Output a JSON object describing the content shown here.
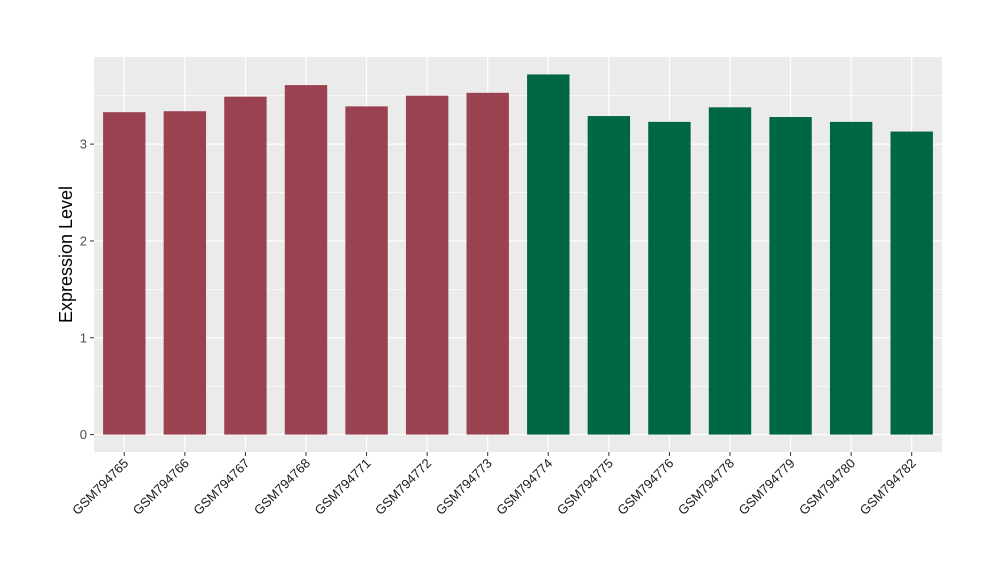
{
  "chart_data": {
    "type": "bar",
    "title": "",
    "xlabel": "",
    "ylabel": "Expression Level",
    "ylim": [
      -0.18,
      3.9
    ],
    "yticks": [
      0,
      1,
      2,
      3
    ],
    "grid": true,
    "legend": "none",
    "categories": [
      "GSM794765",
      "GSM794766",
      "GSM794767",
      "GSM794768",
      "GSM794771",
      "GSM794772",
      "GSM794773",
      "GSM794774",
      "GSM794775",
      "GSM794776",
      "GSM794778",
      "GSM794779",
      "GSM794780",
      "GSM794782"
    ],
    "values": [
      3.33,
      3.34,
      3.49,
      3.61,
      3.39,
      3.5,
      3.53,
      3.72,
      3.29,
      3.23,
      3.38,
      3.28,
      3.23,
      3.13
    ],
    "groups": [
      0,
      0,
      0,
      0,
      0,
      0,
      0,
      1,
      1,
      1,
      1,
      1,
      1,
      1
    ],
    "group_colors": [
      "#9a424f",
      "#006745"
    ],
    "panel_background": "#ebebeb",
    "gridline_color": "#ffffff"
  }
}
